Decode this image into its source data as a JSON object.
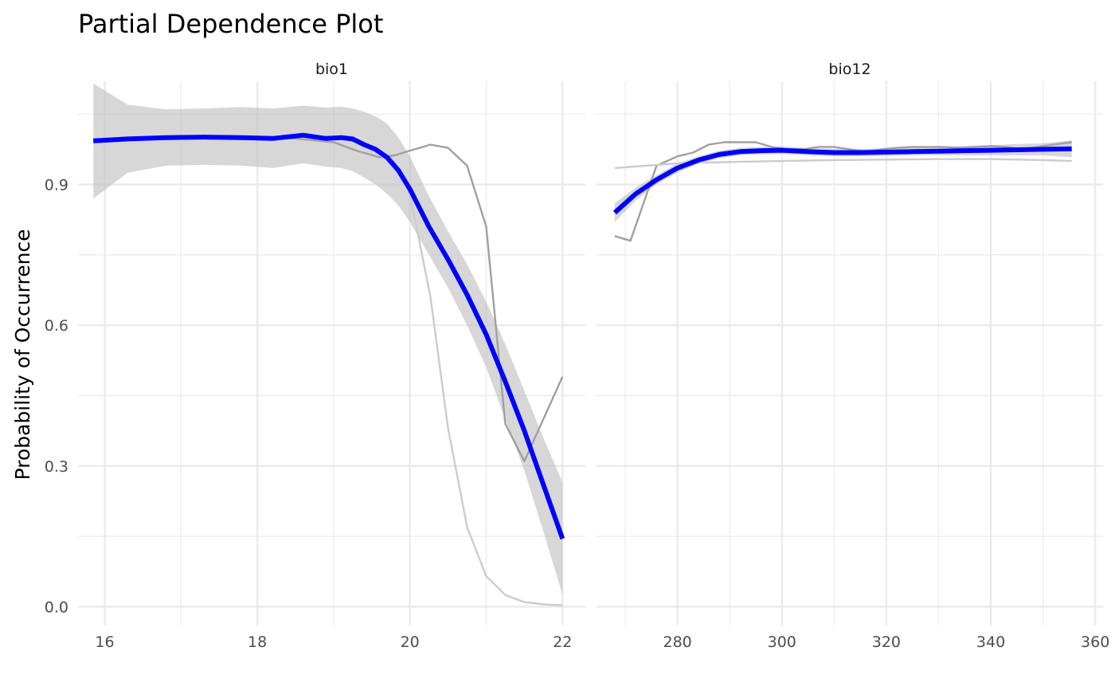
{
  "chart_data": {
    "type": "line",
    "title": "Partial Dependence Plot",
    "ylabel": "Probability of Occurrence",
    "xlabel": "",
    "ylim": [
      -0.04,
      1.12
    ],
    "y_ticks": [
      0.0,
      0.3,
      0.6,
      0.9
    ],
    "y_tick_labels": [
      "0.0",
      "0.3",
      "0.6",
      "0.9"
    ],
    "grid": true,
    "colors": {
      "smooth": "#0000ff",
      "band": "#bfbfbf",
      "line_dark": "#a0a0a0",
      "line_light": "#cccccc",
      "grid": "#ebebeb"
    },
    "panels": [
      {
        "strip": "bio1",
        "xlim": [
          15.65,
          22.3
        ],
        "x_ticks": [
          16,
          18,
          20,
          22
        ],
        "x_tick_labels": [
          "16",
          "18",
          "20",
          "22"
        ],
        "series": [
          {
            "role": "model_line_dark",
            "x": [
              15.85,
              16.5,
              17.0,
              17.5,
              18.0,
              18.5,
              19.0,
              19.3,
              19.6,
              19.8,
              20.0,
              20.27,
              20.5,
              20.75,
              21.0,
              21.25,
              21.5,
              21.75,
              22.0
            ],
            "y": [
              0.995,
              0.998,
              1.0,
              1.0,
              1.0,
              0.998,
              0.99,
              0.972,
              0.958,
              0.962,
              0.972,
              0.985,
              0.978,
              0.94,
              0.81,
              0.39,
              0.31,
              0.4,
              0.49
            ]
          },
          {
            "role": "model_line_light",
            "x": [
              15.85,
              16.5,
              17.0,
              17.5,
              18.0,
              18.5,
              19.0,
              19.3,
              19.6,
              19.85,
              20.0,
              20.27,
              20.5,
              20.75,
              21.0,
              21.25,
              21.5,
              21.75,
              22.0
            ],
            "y": [
              0.995,
              0.998,
              1.0,
              1.0,
              1.0,
              1.002,
              1.0,
              0.99,
              0.965,
              0.93,
              0.88,
              0.66,
              0.38,
              0.17,
              0.065,
              0.025,
              0.01,
              0.005,
              0.003
            ]
          },
          {
            "role": "smooth_fit",
            "x": [
              15.85,
              16.3,
              16.8,
              17.3,
              17.8,
              18.2,
              18.6,
              18.9,
              19.1,
              19.25,
              19.4,
              19.55,
              19.7,
              19.85,
              20.0,
              20.25,
              20.5,
              20.75,
              21.0,
              21.25,
              21.5,
              21.75,
              22.0
            ],
            "y": [
              0.993,
              0.997,
              1.0,
              1.001,
              1.0,
              0.998,
              1.005,
              0.998,
              1.0,
              0.997,
              0.985,
              0.975,
              0.958,
              0.93,
              0.89,
              0.81,
              0.74,
              0.665,
              0.58,
              0.48,
              0.375,
              0.26,
              0.145
            ],
            "ymin": [
              0.87,
              0.925,
              0.94,
              0.942,
              0.94,
              0.935,
              0.945,
              0.938,
              0.935,
              0.928,
              0.915,
              0.9,
              0.88,
              0.855,
              0.82,
              0.75,
              0.68,
              0.6,
              0.51,
              0.4,
              0.29,
              0.16,
              0.025
            ],
            "ymax": [
              1.115,
              1.07,
              1.06,
              1.062,
              1.065,
              1.062,
              1.068,
              1.064,
              1.066,
              1.062,
              1.055,
              1.045,
              1.03,
              1.0,
              0.96,
              0.875,
              0.8,
              0.73,
              0.65,
              0.56,
              0.46,
              0.36,
              0.265
            ]
          }
        ]
      },
      {
        "strip": "bio12",
        "xlim": [
          264.5,
          361.5
        ],
        "x_ticks": [
          280,
          300,
          320,
          340,
          360
        ],
        "x_tick_labels": [
          "280",
          "300",
          "320",
          "340",
          "360"
        ],
        "series": [
          {
            "role": "model_line_dark",
            "x": [
              268,
              271,
              276,
              280,
              283,
              286,
              289,
              292,
              295,
              298,
              301,
              304,
              307,
              310,
              313,
              316,
              319,
              322,
              325,
              328,
              331,
              334,
              337,
              340,
              343,
              346,
              349,
              352,
              355.5
            ],
            "y": [
              0.79,
              0.78,
              0.94,
              0.96,
              0.968,
              0.985,
              0.99,
              0.99,
              0.99,
              0.98,
              0.975,
              0.975,
              0.98,
              0.98,
              0.975,
              0.97,
              0.975,
              0.978,
              0.98,
              0.98,
              0.98,
              0.978,
              0.98,
              0.982,
              0.98,
              0.975,
              0.98,
              0.985,
              0.99
            ]
          },
          {
            "role": "model_line_light",
            "x": [
              268,
              280,
              290,
              300,
              310,
              320,
              330,
              340,
              350,
              355.5
            ],
            "y": [
              0.935,
              0.945,
              0.948,
              0.95,
              0.952,
              0.953,
              0.954,
              0.954,
              0.952,
              0.95
            ]
          },
          {
            "role": "smooth_fit",
            "x": [
              268,
              272,
              276,
              280,
              284,
              288,
              292,
              296,
              300,
              305,
              310,
              315,
              320,
              325,
              330,
              335,
              340,
              345,
              350,
              355.5
            ],
            "y": [
              0.84,
              0.88,
              0.91,
              0.935,
              0.952,
              0.964,
              0.97,
              0.972,
              0.973,
              0.97,
              0.968,
              0.968,
              0.969,
              0.97,
              0.971,
              0.972,
              0.973,
              0.974,
              0.975,
              0.976
            ],
            "ymin": [
              0.82,
              0.866,
              0.9,
              0.925,
              0.944,
              0.956,
              0.962,
              0.964,
              0.965,
              0.962,
              0.96,
              0.96,
              0.961,
              0.962,
              0.962,
              0.962,
              0.962,
              0.962,
              0.962,
              0.958
            ],
            "ymax": [
              0.86,
              0.894,
              0.92,
              0.945,
              0.96,
              0.972,
              0.978,
              0.98,
              0.981,
              0.978,
              0.976,
              0.976,
              0.977,
              0.978,
              0.98,
              0.982,
              0.984,
              0.986,
              0.988,
              0.994
            ]
          }
        ]
      }
    ]
  }
}
